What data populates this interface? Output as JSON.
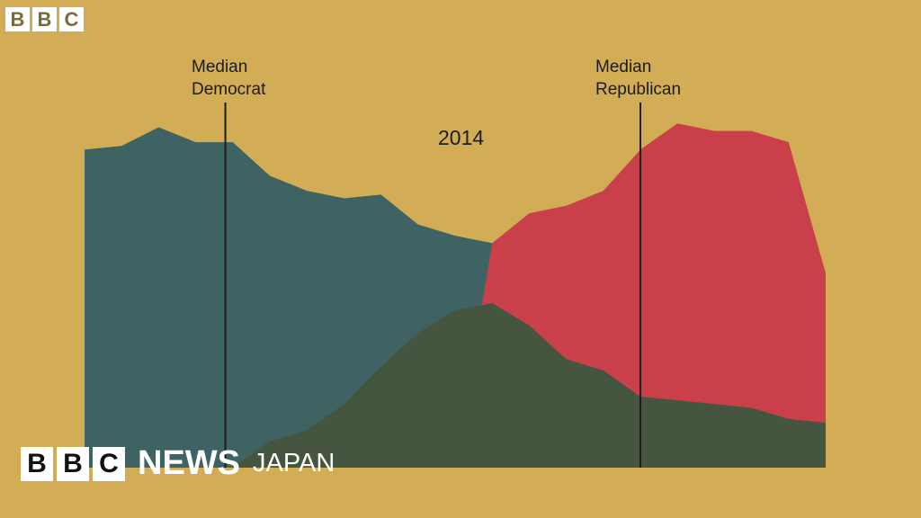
{
  "logo_top": [
    "B",
    "B",
    "C"
  ],
  "news_banner": {
    "blocks": [
      "B",
      "B",
      "C"
    ],
    "news": "NEWS",
    "region": "JAPAN"
  },
  "chart_data": {
    "type": "area",
    "title": "2014",
    "xlim": [
      0,
      20
    ],
    "ylim": [
      0,
      100
    ],
    "x": [
      0,
      1,
      2,
      3,
      4,
      5,
      6,
      7,
      8,
      9,
      10,
      11,
      12,
      13,
      14,
      15,
      16,
      17,
      18,
      19,
      20
    ],
    "series": [
      {
        "color": "#3f6262",
        "values": [
          85,
          86,
          91,
          87,
          87,
          78,
          74,
          72,
          73,
          65,
          62,
          60,
          41,
          39,
          28,
          25,
          23,
          21,
          20,
          19,
          19
        ]
      },
      {
        "color": "#c9404a",
        "values": [
          0,
          0,
          0,
          0,
          0,
          0,
          0,
          0,
          0,
          0,
          0,
          60,
          68,
          70,
          74,
          85,
          92,
          90,
          90,
          87,
          52
        ]
      },
      {
        "color": "#45553f",
        "values": [
          0,
          0,
          0,
          0,
          0,
          7,
          10,
          17,
          27,
          36,
          42,
          44,
          38,
          29,
          26,
          19,
          18,
          17,
          16,
          13,
          12
        ]
      }
    ],
    "annotations": [
      {
        "label": "Median\nDemocrat",
        "x": 3.8
      },
      {
        "label": "Median\nRepublican",
        "x": 15.0
      }
    ]
  }
}
